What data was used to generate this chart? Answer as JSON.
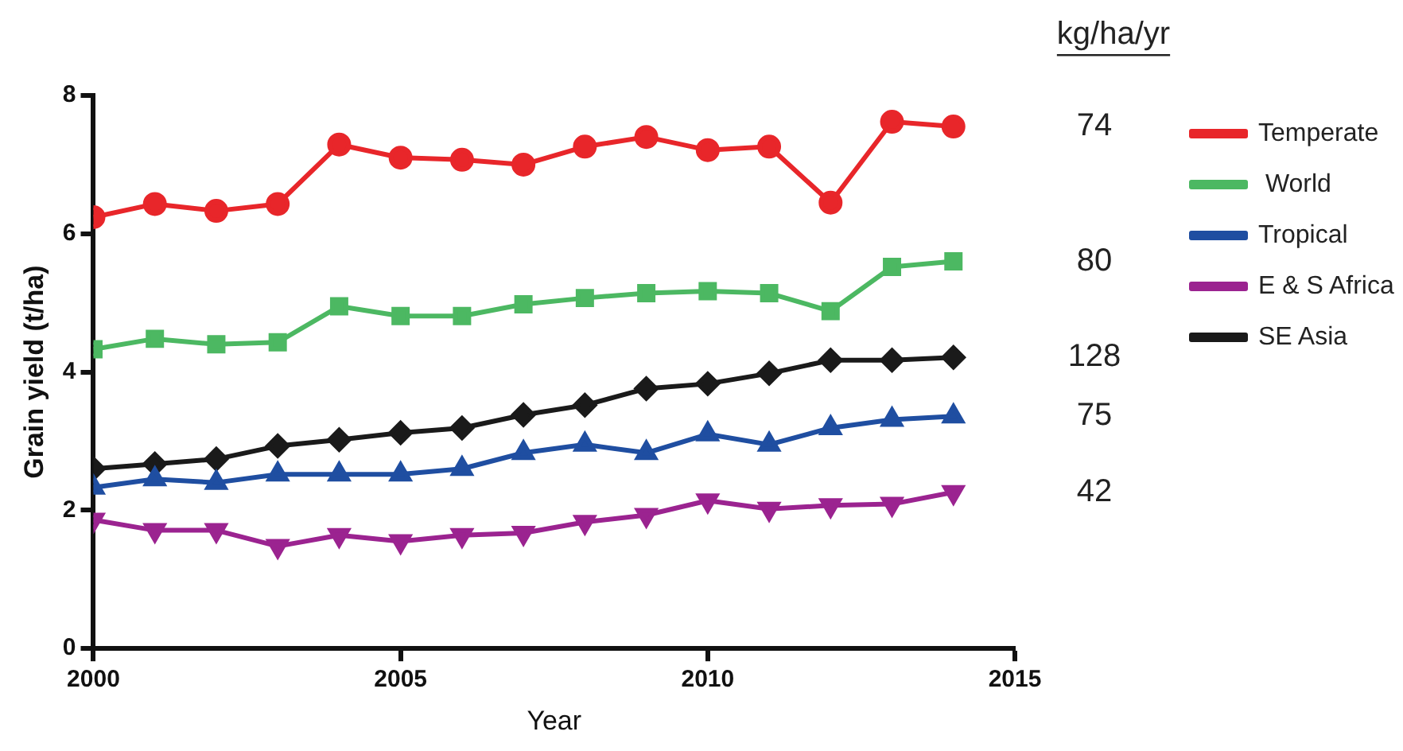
{
  "chart_data": {
    "type": "line",
    "xlabel": "Year",
    "ylabel": "Grain yield (t/ha)",
    "x": [
      2000,
      2001,
      2002,
      2003,
      2004,
      2005,
      2006,
      2007,
      2008,
      2009,
      2010,
      2011,
      2012,
      2013,
      2014
    ],
    "xlim": [
      2000,
      2015
    ],
    "xticks": [
      2000,
      2005,
      2010,
      2015
    ],
    "ylim": [
      0,
      8
    ],
    "yticks": [
      0,
      2,
      4,
      6,
      8
    ],
    "grid": false,
    "legend": "right",
    "line_style": "solid",
    "series": [
      {
        "name": "Temperate",
        "color": "#e8262a",
        "marker": "circle",
        "values": [
          6.24,
          6.43,
          6.33,
          6.43,
          7.29,
          7.1,
          7.07,
          7.0,
          7.26,
          7.4,
          7.21,
          7.26,
          6.45,
          7.62,
          7.55
        ]
      },
      {
        "name": " World",
        "color": "#4cb862",
        "marker": "square",
        "values": [
          4.33,
          4.48,
          4.4,
          4.43,
          4.95,
          4.81,
          4.81,
          4.98,
          5.07,
          5.14,
          5.17,
          5.14,
          4.88,
          5.52,
          5.6
        ]
      },
      {
        "name": "Tropical",
        "color": "#1f4ea1",
        "marker": "triangle",
        "values": [
          2.33,
          2.45,
          2.4,
          2.52,
          2.52,
          2.52,
          2.6,
          2.83,
          2.95,
          2.83,
          3.1,
          2.95,
          3.19,
          3.31,
          3.36
        ]
      },
      {
        "name": "E & S Africa",
        "color": "#9b2390",
        "marker": "triangle-down",
        "values": [
          1.86,
          1.71,
          1.71,
          1.48,
          1.64,
          1.55,
          1.64,
          1.67,
          1.83,
          1.93,
          2.14,
          2.02,
          2.07,
          2.09,
          2.26
        ]
      },
      {
        "name": "SE Asia",
        "color": "#1a1a1a",
        "marker": "diamond",
        "values": [
          2.6,
          2.67,
          2.74,
          2.93,
          3.02,
          3.12,
          3.19,
          3.38,
          3.52,
          3.76,
          3.83,
          3.98,
          4.17,
          4.17,
          4.21
        ]
      }
    ],
    "annotations": [
      "kg/ha/yr",
      "74",
      "80",
      "128",
      "75",
      "42"
    ]
  }
}
